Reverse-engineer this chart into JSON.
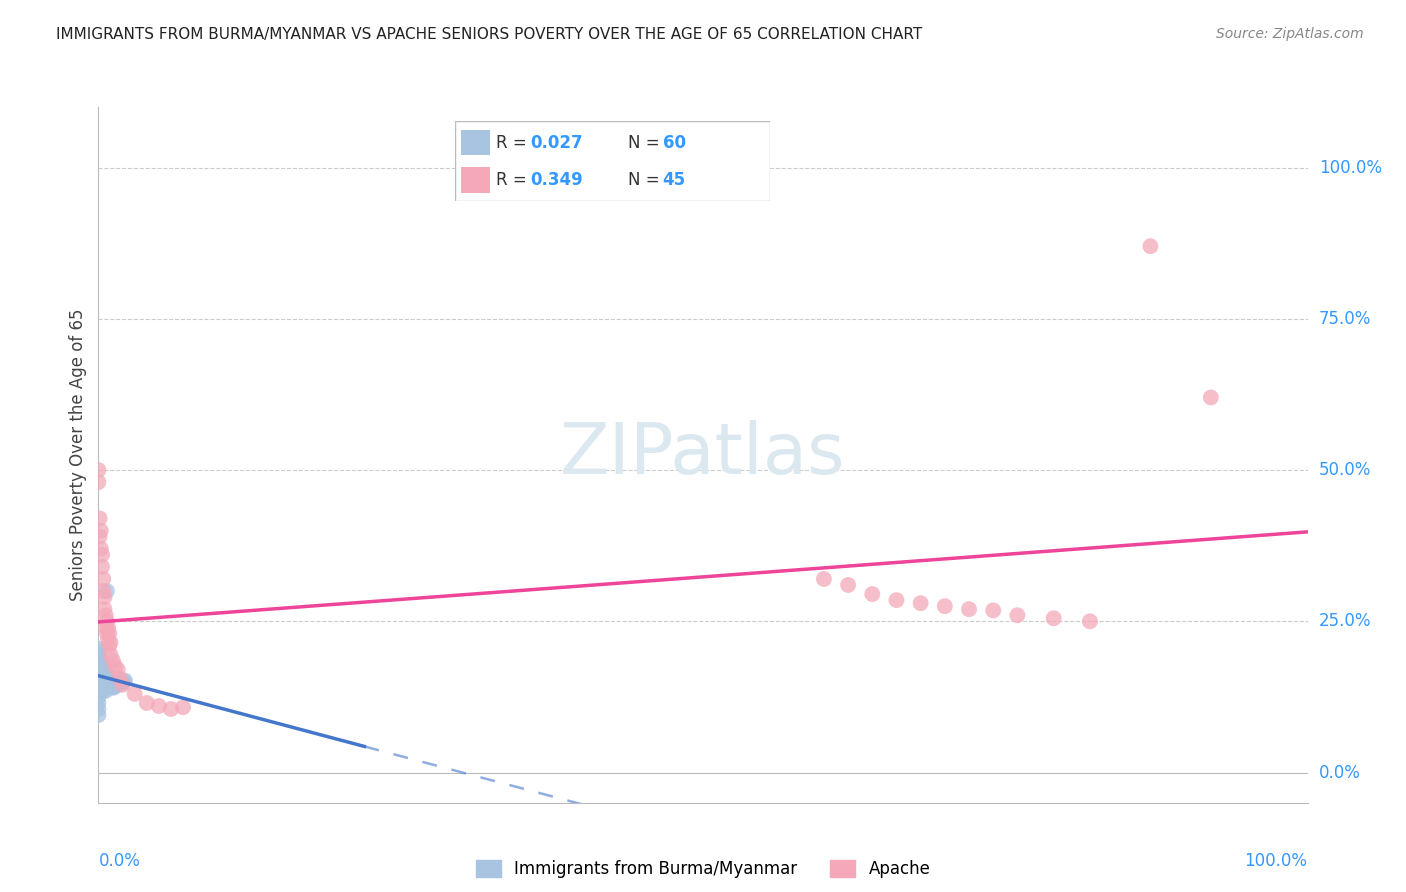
{
  "title": "IMMIGRANTS FROM BURMA/MYANMAR VS APACHE SENIORS POVERTY OVER THE AGE OF 65 CORRELATION CHART",
  "source": "Source: ZipAtlas.com",
  "ylabel": "Seniors Poverty Over the Age of 65",
  "xlim": [
    0,
    1.0
  ],
  "ylim": [
    -0.05,
    1.1
  ],
  "yticks": [
    0.0,
    0.25,
    0.5,
    0.75,
    1.0
  ],
  "ytick_labels": [
    "0.0%",
    "25.0%",
    "50.0%",
    "75.0%",
    "100.0%"
  ],
  "legend_label_blue": "Immigrants from Burma/Myanmar",
  "legend_label_pink": "Apache",
  "blue_color": "#a8c4e0",
  "pink_color": "#f4a8b8",
  "trendline_blue_color": "#4477cc",
  "trendline_pink_color": "#ee4499",
  "R_N_color": "#3399ff",
  "watermark_color": "#c8d8e8",
  "blue_scatter": [
    [
      0.0,
      0.205
    ],
    [
      0.0,
      0.195
    ],
    [
      0.0,
      0.185
    ],
    [
      0.0,
      0.175
    ],
    [
      0.0,
      0.165
    ],
    [
      0.0,
      0.155
    ],
    [
      0.0,
      0.145
    ],
    [
      0.0,
      0.135
    ],
    [
      0.0,
      0.125
    ],
    [
      0.0,
      0.115
    ],
    [
      0.0,
      0.105
    ],
    [
      0.0,
      0.095
    ],
    [
      0.001,
      0.2
    ],
    [
      0.001,
      0.19
    ],
    [
      0.001,
      0.18
    ],
    [
      0.001,
      0.17
    ],
    [
      0.001,
      0.16
    ],
    [
      0.001,
      0.15
    ],
    [
      0.002,
      0.185
    ],
    [
      0.002,
      0.175
    ],
    [
      0.002,
      0.165
    ],
    [
      0.002,
      0.155
    ],
    [
      0.002,
      0.145
    ],
    [
      0.002,
      0.135
    ],
    [
      0.003,
      0.18
    ],
    [
      0.003,
      0.17
    ],
    [
      0.003,
      0.16
    ],
    [
      0.003,
      0.15
    ],
    [
      0.003,
      0.14
    ],
    [
      0.004,
      0.175
    ],
    [
      0.004,
      0.165
    ],
    [
      0.004,
      0.155
    ],
    [
      0.004,
      0.145
    ],
    [
      0.004,
      0.135
    ],
    [
      0.005,
      0.17
    ],
    [
      0.005,
      0.16
    ],
    [
      0.005,
      0.15
    ],
    [
      0.005,
      0.14
    ],
    [
      0.006,
      0.165
    ],
    [
      0.006,
      0.155
    ],
    [
      0.006,
      0.145
    ],
    [
      0.006,
      0.135
    ],
    [
      0.007,
      0.3
    ],
    [
      0.007,
      0.16
    ],
    [
      0.008,
      0.155
    ],
    [
      0.008,
      0.145
    ],
    [
      0.009,
      0.15
    ],
    [
      0.01,
      0.145
    ],
    [
      0.011,
      0.142
    ],
    [
      0.012,
      0.14
    ],
    [
      0.013,
      0.145
    ],
    [
      0.014,
      0.142
    ],
    [
      0.015,
      0.145
    ],
    [
      0.016,
      0.148
    ],
    [
      0.017,
      0.15
    ],
    [
      0.018,
      0.152
    ],
    [
      0.019,
      0.15
    ],
    [
      0.02,
      0.148
    ],
    [
      0.021,
      0.15
    ],
    [
      0.022,
      0.152
    ]
  ],
  "pink_scatter": [
    [
      0.0,
      0.5
    ],
    [
      0.0,
      0.48
    ],
    [
      0.001,
      0.42
    ],
    [
      0.001,
      0.39
    ],
    [
      0.002,
      0.4
    ],
    [
      0.002,
      0.37
    ],
    [
      0.003,
      0.36
    ],
    [
      0.003,
      0.34
    ],
    [
      0.004,
      0.32
    ],
    [
      0.004,
      0.3
    ],
    [
      0.005,
      0.29
    ],
    [
      0.005,
      0.27
    ],
    [
      0.006,
      0.26
    ],
    [
      0.006,
      0.24
    ],
    [
      0.007,
      0.25
    ],
    [
      0.007,
      0.23
    ],
    [
      0.008,
      0.24
    ],
    [
      0.008,
      0.22
    ],
    [
      0.009,
      0.23
    ],
    [
      0.009,
      0.21
    ],
    [
      0.01,
      0.215
    ],
    [
      0.01,
      0.195
    ],
    [
      0.012,
      0.185
    ],
    [
      0.014,
      0.175
    ],
    [
      0.016,
      0.17
    ],
    [
      0.018,
      0.155
    ],
    [
      0.02,
      0.145
    ],
    [
      0.03,
      0.13
    ],
    [
      0.04,
      0.115
    ],
    [
      0.05,
      0.11
    ],
    [
      0.06,
      0.105
    ],
    [
      0.07,
      0.108
    ],
    [
      0.6,
      0.32
    ],
    [
      0.62,
      0.31
    ],
    [
      0.64,
      0.295
    ],
    [
      0.66,
      0.285
    ],
    [
      0.68,
      0.28
    ],
    [
      0.7,
      0.275
    ],
    [
      0.72,
      0.27
    ],
    [
      0.74,
      0.268
    ],
    [
      0.76,
      0.26
    ],
    [
      0.79,
      0.255
    ],
    [
      0.82,
      0.25
    ],
    [
      0.87,
      0.87
    ],
    [
      0.92,
      0.62
    ]
  ]
}
